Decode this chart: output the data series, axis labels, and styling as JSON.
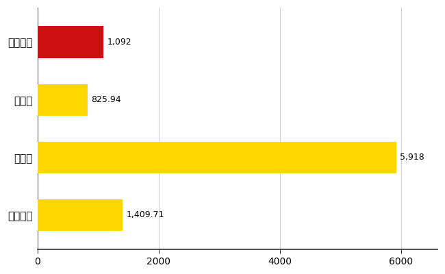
{
  "categories": [
    "大船渡市",
    "県平均",
    "県最大",
    "全国平均"
  ],
  "values": [
    1092,
    825.94,
    5918,
    1409.71
  ],
  "bar_colors": [
    "#CC1010",
    "#FFD700",
    "#FFD700",
    "#FFD700"
  ],
  "value_labels": [
    "1,092",
    "825.94",
    "5,918",
    "1,409.71"
  ],
  "xlim": [
    0,
    6600
  ],
  "xticks": [
    0,
    2000,
    4000,
    6000
  ],
  "background_color": "#FFFFFF",
  "grid_color": "#D0D0D0",
  "bar_height": 0.55,
  "label_fontsize": 11,
  "tick_fontsize": 10,
  "value_label_fontsize": 9,
  "figure_width": 6.5,
  "figure_height": 4.0,
  "dpi": 100
}
